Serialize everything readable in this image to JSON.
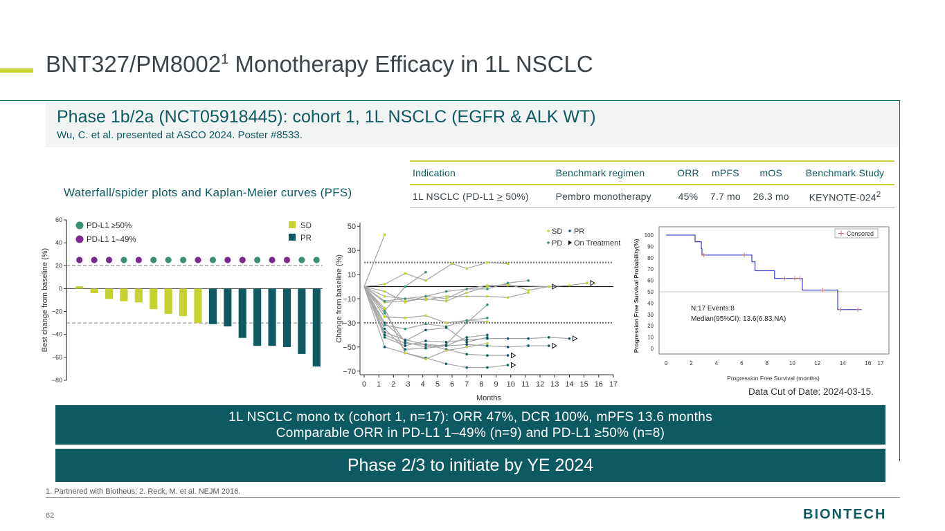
{
  "slide": {
    "title": "BNT327/PM8002",
    "title_sup": "1",
    "title_rest": " Monotherapy Efficacy in 1L NSCLC",
    "subhead": "Phase 1b/2a (NCT05918445): cohort 1, 1L NSCLC (EGFR & ALK WT)",
    "citation": "Wu, C. et al. presented at ASCO 2024. Poster #8533.",
    "plots_title": "Waterfall/spider plots and Kaplan-Meier curves (PFS)",
    "datacut": "Data Cut of Date: 2024-03-15.",
    "summary_line1": "1L NSCLC mono tx (cohort 1, n=17): ORR 47%, DCR 100%, mPFS 13.6 months",
    "summary_line2": "Comparable ORR in PD-L1 1–49% (n=9) and PD-L1 ≥50% (n=8)",
    "phase_banner": "Phase 2/3 to initiate by YE 2024",
    "footnote": "1. Partnered with Biotheus; 2. Reck, M. et al. NEJM 2016.",
    "page_number": "62",
    "logo": "BIONTECH"
  },
  "benchmark_table": {
    "headers": [
      "Indication",
      "Benchmark regimen",
      "ORR",
      "mPFS",
      "mOS",
      "Benchmark Study"
    ],
    "row": {
      "indication_pre": "1L NSCLC (PD-L1 ",
      "indication_op": ">",
      "indication_post": " 50%)",
      "regimen": "Pembro monotherapy",
      "orr": "45%",
      "mpfs": "7.7 mo",
      "mos": "26.3 mo",
      "study": "KEYNOTE-024",
      "study_sup": "2"
    }
  },
  "colors": {
    "accent": "#c5d22f",
    "teal": "#0e5a63",
    "sd": "#c5d22f",
    "pr": "#0e5a63",
    "pdl1_high": "#3b9172",
    "pdl1_low": "#7b2a8f",
    "km_line": "#4a4ad6"
  },
  "chart_data": [
    {
      "type": "bar",
      "name": "waterfall",
      "ylabel": "Best change from baseline (%)",
      "ylim": [
        -80,
        60
      ],
      "yticks": [
        60,
        40,
        20,
        0,
        -20,
        -40,
        -60,
        -80
      ],
      "ytick_labels": [
        "60",
        "40",
        "20",
        "0",
        "−20",
        "−40",
        "−60",
        "−80"
      ],
      "reference_lines": [
        20,
        -30
      ],
      "values": [
        2,
        -4,
        -9,
        -11,
        -12,
        -18,
        -22,
        -24,
        -30,
        -31,
        -33,
        -43,
        -50,
        -50,
        -51,
        -57,
        -68
      ],
      "response": [
        "SD",
        "SD",
        "SD",
        "SD",
        "SD",
        "SD",
        "SD",
        "SD",
        "SD",
        "PR",
        "PR",
        "PR",
        "PR",
        "PR",
        "PR",
        "PR",
        "PR"
      ],
      "pdl1": [
        "low",
        "low",
        "low",
        "high",
        "low",
        "high",
        "high",
        "high",
        "low",
        "high",
        "low",
        "low",
        "high",
        "low",
        "low",
        "high",
        "high"
      ],
      "legend_pdl1": [
        {
          "key": "high",
          "label": "PD-L1 ≥50%"
        },
        {
          "key": "low",
          "label": "PD-L1 1–49%"
        }
      ],
      "legend_response": [
        {
          "key": "SD",
          "label": "SD"
        },
        {
          "key": "PR",
          "label": "PR"
        }
      ]
    },
    {
      "type": "line",
      "name": "spider",
      "xlabel": "Months",
      "ylabel": "Change from baseline (%)",
      "xlim": [
        0,
        17
      ],
      "ylim": [
        -73,
        53
      ],
      "xticks": [
        0,
        1,
        2,
        3,
        4,
        5,
        6,
        7,
        8,
        9,
        10,
        11,
        12,
        13,
        14,
        15,
        16,
        17
      ],
      "yticks": [
        50,
        30,
        10,
        -10,
        -30,
        -50,
        -70
      ],
      "ytick_labels": [
        "50",
        "30",
        "10",
        "−10",
        "−30",
        "−50",
        "−70"
      ],
      "reference_lines": [
        20,
        0,
        -30
      ],
      "legend": [
        "SD",
        "PR",
        "PD",
        "On Treatment"
      ],
      "series": [
        {
          "response": "SD",
          "points": [
            [
              0,
              0
            ],
            [
              1.4,
              43
            ]
          ]
        },
        {
          "response": "SD",
          "points": [
            [
              0,
              0
            ],
            [
              1.4,
              2
            ],
            [
              2.8,
              11
            ],
            [
              4.2,
              5
            ],
            [
              6,
              19
            ],
            [
              7,
              15
            ],
            [
              8.4,
              20
            ],
            [
              9.8,
              19
            ]
          ]
        },
        {
          "response": "SD",
          "points": [
            [
              0,
              0
            ],
            [
              1.4,
              -8
            ],
            [
              2.8,
              -10
            ],
            [
              4.2,
              -11
            ],
            [
              5.6,
              -8
            ],
            [
              7,
              -8
            ],
            [
              8.4,
              -8
            ],
            [
              9.8,
              -9
            ],
            [
              11.2,
              -5
            ]
          ]
        },
        {
          "response": "SD",
          "points": [
            [
              0,
              0
            ],
            [
              1.4,
              -13
            ],
            [
              2.8,
              -12
            ],
            [
              4.2,
              -10
            ],
            [
              5.6,
              -12
            ],
            [
              7,
              -5
            ],
            [
              8.4,
              0
            ],
            [
              9.8,
              2
            ],
            [
              11.2,
              -3
            ],
            [
              12.6,
              0
            ],
            [
              14,
              1
            ],
            [
              15.2,
              3
            ]
          ],
          "on_treatment": true
        },
        {
          "response": "SD",
          "points": [
            [
              0,
              0
            ],
            [
              1.4,
              -25
            ],
            [
              2.8,
              -26
            ],
            [
              4.2,
              -24
            ],
            [
              5.6,
              -30
            ],
            [
              7,
              -28
            ],
            [
              8.4,
              -29
            ]
          ]
        },
        {
          "response": "SD",
          "points": [
            [
              0,
              0
            ],
            [
              1.4,
              -4
            ],
            [
              2.8,
              -13
            ],
            [
              4.2,
              -8
            ],
            [
              5.6,
              -10
            ],
            [
              7,
              -2
            ],
            [
              8.4,
              1
            ],
            [
              9.8,
              1
            ],
            [
              12.6,
              0
            ]
          ],
          "on_treatment": true
        },
        {
          "response": "PD",
          "points": [
            [
              0,
              0
            ],
            [
              1.4,
              -32
            ],
            [
              2.8,
              -35
            ],
            [
              4.2,
              -31
            ],
            [
              5.6,
              -33
            ],
            [
              7,
              -28
            ],
            [
              8.4,
              -26
            ]
          ]
        },
        {
          "response": "PD",
          "points": [
            [
              0,
              0
            ],
            [
              1.4,
              -12
            ],
            [
              2.8,
              -10
            ],
            [
              4.2,
              -8
            ],
            [
              5.6,
              -4
            ],
            [
              7,
              -2
            ],
            [
              8.4,
              -2
            ],
            [
              9.8,
              3
            ],
            [
              11.2,
              5
            ]
          ]
        },
        {
          "response": "PD",
          "points": [
            [
              0,
              0
            ],
            [
              1.4,
              -20
            ],
            [
              2.8,
              0
            ],
            [
              4.2,
              12
            ]
          ]
        },
        {
          "response": "PD",
          "points": [
            [
              0,
              0
            ],
            [
              1.4,
              -22
            ],
            [
              2.8,
              -46
            ],
            [
              4.2,
              -50
            ],
            [
              5.6,
              -48
            ],
            [
              7,
              -30
            ],
            [
              8.4,
              -15
            ]
          ]
        },
        {
          "response": "PR",
          "points": [
            [
              0,
              0
            ],
            [
              1.4,
              -38
            ],
            [
              2.8,
              -44
            ],
            [
              4.2,
              -48
            ],
            [
              5.6,
              -52
            ],
            [
              7,
              -56
            ],
            [
              8.4,
              -57
            ],
            [
              9.8,
              -57
            ]
          ],
          "on_treatment": true
        },
        {
          "response": "PR",
          "points": [
            [
              0,
              0
            ],
            [
              1.4,
              -42
            ],
            [
              2.8,
              -49
            ],
            [
              4.2,
              -45
            ],
            [
              5.6,
              -46
            ],
            [
              7,
              -44
            ],
            [
              8.4,
              -43
            ],
            [
              9.8,
              -43
            ],
            [
              11.2,
              -43
            ],
            [
              12.6,
              -42
            ],
            [
              14,
              -43
            ]
          ],
          "on_treatment": true
        },
        {
          "response": "PR",
          "points": [
            [
              0,
              0
            ],
            [
              1.4,
              -40
            ],
            [
              2.8,
              -47
            ],
            [
              4.2,
              -48
            ],
            [
              5.6,
              -49
            ],
            [
              7,
              -48
            ],
            [
              8.4,
              -49
            ],
            [
              9.8,
              -50
            ],
            [
              11.2,
              -49
            ],
            [
              12.6,
              -49
            ]
          ],
          "on_treatment": true
        },
        {
          "response": "PR",
          "points": [
            [
              0,
              0
            ],
            [
              1.4,
              -50
            ],
            [
              2.8,
              -55
            ],
            [
              4.2,
              -59
            ],
            [
              5.6,
              -64
            ],
            [
              7,
              -67
            ],
            [
              8.4,
              -67
            ],
            [
              9.8,
              -65
            ]
          ],
          "on_treatment": true
        },
        {
          "response": "PR",
          "points": [
            [
              0,
              0
            ],
            [
              1.4,
              -30
            ],
            [
              2.8,
              -45
            ],
            [
              4.2,
              -36
            ],
            [
              5.6,
              -34
            ],
            [
              7,
              -46
            ],
            [
              8.4,
              -42
            ]
          ]
        },
        {
          "response": "PR",
          "points": [
            [
              0,
              0
            ],
            [
              1.4,
              -35
            ],
            [
              2.8,
              -52
            ],
            [
              4.2,
              -51
            ],
            [
              5.6,
              -49
            ],
            [
              7,
              -42
            ],
            [
              8.4,
              -40
            ]
          ]
        },
        {
          "response": "SD",
          "points": [
            [
              0,
              0
            ],
            [
              1.4,
              -18
            ],
            [
              2.8,
              -55
            ],
            [
              4.2,
              -60
            ],
            [
              5.6,
              -53
            ],
            [
              7,
              -50
            ],
            [
              8.4,
              -47
            ]
          ]
        }
      ]
    },
    {
      "type": "line",
      "name": "kaplan_meier",
      "xlabel": "Progression Free Survival (months)",
      "ylabel": "Progression Free Survival Probability(%)",
      "xlim": [
        0,
        17
      ],
      "ylim": [
        0,
        100
      ],
      "xticks": [
        0,
        2,
        4,
        6,
        8,
        10,
        12,
        14,
        16,
        17
      ],
      "yticks": [
        0,
        10,
        20,
        30,
        40,
        50,
        60,
        70,
        80,
        90,
        100
      ],
      "legend": "Censored",
      "step_points": [
        [
          0,
          100
        ],
        [
          2.3,
          100
        ],
        [
          2.3,
          94.1
        ],
        [
          2.8,
          94.1
        ],
        [
          2.8,
          88.2
        ],
        [
          2.85,
          88.2
        ],
        [
          2.85,
          82.4
        ],
        [
          6.8,
          82.4
        ],
        [
          6.8,
          76.5
        ],
        [
          7.05,
          76.5
        ],
        [
          7.05,
          68.6
        ],
        [
          8.6,
          68.6
        ],
        [
          8.6,
          61.8
        ],
        [
          10.8,
          61.8
        ],
        [
          10.8,
          51.5
        ],
        [
          13.6,
          51.5
        ],
        [
          13.6,
          34.3
        ],
        [
          15.5,
          34.3
        ]
      ],
      "censored": [
        [
          3,
          82.4
        ],
        [
          6.2,
          82.4
        ],
        [
          9.4,
          61.8
        ],
        [
          10.2,
          61.8
        ],
        [
          10.6,
          61.8
        ],
        [
          12.4,
          51.5
        ],
        [
          13.8,
          34.3
        ],
        [
          15.2,
          34.3
        ]
      ],
      "reference_label": "50%",
      "annotation_n": "N:17    Events:8",
      "annotation_median": "Median(95%CI): 13.6(6.83,NA)"
    }
  ]
}
